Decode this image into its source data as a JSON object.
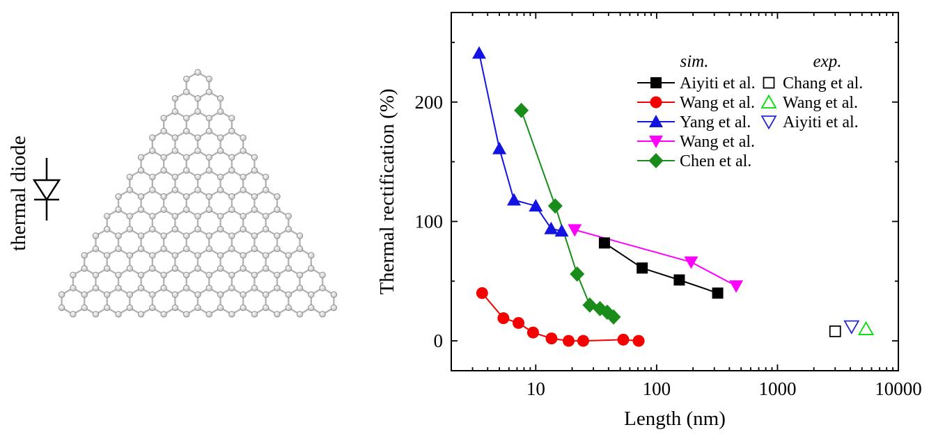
{
  "left_panel": {
    "label": "thermal diode"
  },
  "chart_data": {
    "type": "scatter",
    "title": "",
    "xlabel": "Length (nm)",
    "ylabel": "Thermal rectification (%)",
    "xscale": "log",
    "xlim": [
      2,
      10000
    ],
    "ylim": [
      -25,
      275
    ],
    "xticks": [
      10,
      100,
      1000,
      10000
    ],
    "yticks": [
      0,
      100,
      200
    ],
    "yminorticks": [
      50,
      150,
      250
    ],
    "grid": false,
    "legend": {
      "position": "upper-right-inside",
      "groups": [
        {
          "id": "sim",
          "title": "sim."
        },
        {
          "id": "exp",
          "title": "exp."
        }
      ]
    },
    "series": [
      {
        "name": "Aiyiti et al.",
        "group": "sim",
        "marker": "square",
        "color": "#000000",
        "line": true,
        "points": [
          [
            37,
            82
          ],
          [
            76,
            61
          ],
          [
            154,
            51
          ],
          [
            320,
            40
          ]
        ]
      },
      {
        "name": "Wang et al.",
        "group": "sim",
        "marker": "circle",
        "color": "#f40000",
        "line": true,
        "points": [
          [
            3.6,
            40
          ],
          [
            5.4,
            19
          ],
          [
            7.2,
            15
          ],
          [
            9.5,
            7
          ],
          [
            13.5,
            2
          ],
          [
            18.7,
            0
          ],
          [
            24.7,
            0
          ],
          [
            53,
            1
          ],
          [
            71,
            0
          ]
        ]
      },
      {
        "name": "Yang et al.",
        "group": "sim",
        "marker": "triangle-up",
        "color": "#1414e0",
        "line": true,
        "points": [
          [
            3.4,
            241
          ],
          [
            5.0,
            161
          ],
          [
            6.6,
            118
          ],
          [
            10,
            113
          ],
          [
            13.4,
            94
          ],
          [
            16.4,
            92
          ]
        ]
      },
      {
        "name": "Wang et al.",
        "group": "sim",
        "marker": "triangle-down",
        "color": "#ff00ff",
        "line": true,
        "points": [
          [
            21,
            93
          ],
          [
            193,
            66
          ],
          [
            455,
            46
          ]
        ]
      },
      {
        "name": "Chen et al.",
        "group": "sim",
        "marker": "diamond",
        "color": "#1a8c1a",
        "line": true,
        "points": [
          [
            7.6,
            193
          ],
          [
            14.5,
            113
          ],
          [
            22,
            56
          ],
          [
            28,
            30
          ],
          [
            34,
            27
          ],
          [
            39,
            24
          ],
          [
            44,
            20
          ]
        ]
      },
      {
        "name": "Chang et al.",
        "group": "exp",
        "marker": "open-square",
        "color": "#000000",
        "line": false,
        "points": [
          [
            3000,
            8
          ]
        ]
      },
      {
        "name": "Wang et al.",
        "group": "exp",
        "marker": "open-triangle-up",
        "color": "#00dd00",
        "line": false,
        "points": [
          [
            5400,
            10
          ]
        ]
      },
      {
        "name": "Aiyiti et al.",
        "group": "exp",
        "marker": "open-triangle-down",
        "color": "#2828cf",
        "line": false,
        "points": [
          [
            4100,
            12
          ]
        ]
      }
    ]
  }
}
